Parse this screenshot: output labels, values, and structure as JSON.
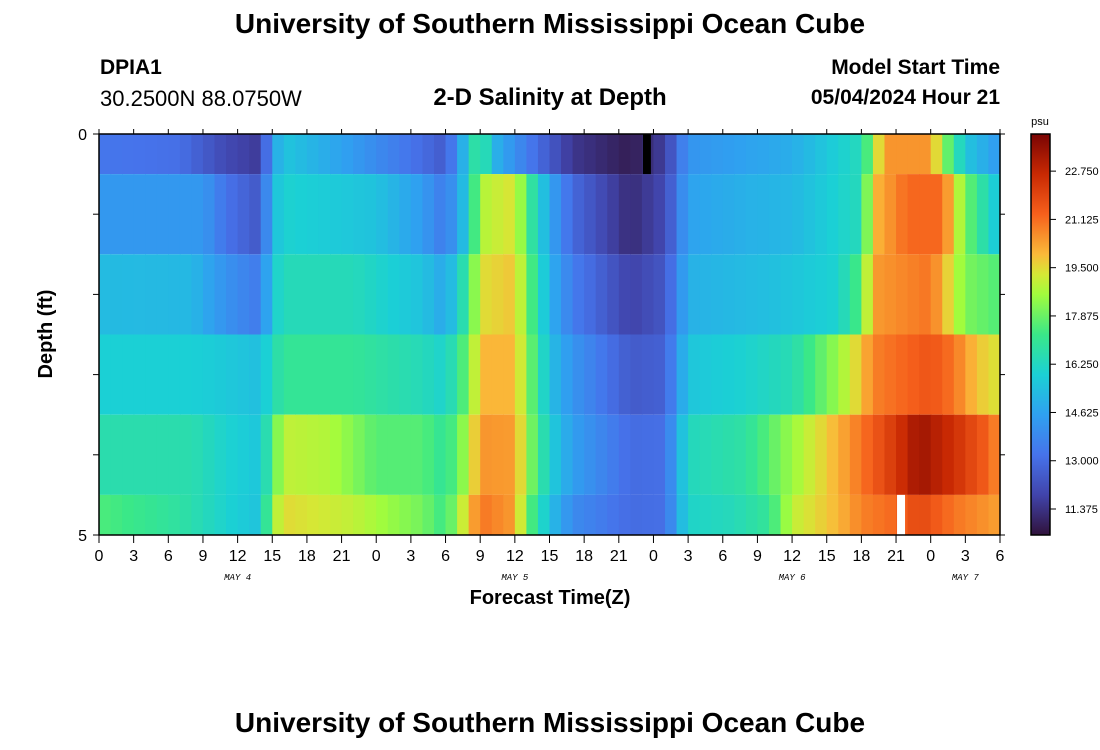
{
  "header": {
    "title": "University of Southern Mississippi Ocean Cube",
    "station_name": "DPIA1",
    "coords": "30.2500N  88.0750W",
    "plot_title": "2-D Salinity at Depth",
    "model_label": "Model Start Time",
    "model_time": "05/04/2024 Hour 21"
  },
  "footer": {
    "title": "University of Southern Mississippi Ocean Cube"
  },
  "chart_data": {
    "type": "heatmap",
    "title": "2-D Salinity at Depth",
    "xlabel": "Forecast Time(Z)",
    "ylabel": "Depth (ft)",
    "y_ticks": [
      "0",
      "5"
    ],
    "ylim": [
      0,
      5
    ],
    "x_tick_labels": [
      "0",
      "3",
      "6",
      "9",
      "12",
      "15",
      "18",
      "21",
      "0",
      "3",
      "6",
      "9",
      "12",
      "15",
      "18",
      "21",
      "0",
      "3",
      "6",
      "9",
      "12",
      "15",
      "18",
      "21",
      "0",
      "3",
      "6"
    ],
    "day_labels": [
      {
        "label": "MAY 4",
        "hour": 12
      },
      {
        "label": "MAY 5",
        "hour": 36
      },
      {
        "label": "MAY 6",
        "hour": 60
      },
      {
        "label": "MAY 7",
        "hour": 75
      }
    ],
    "xlim_hours": [
      0,
      78
    ],
    "colorbar": {
      "unit": "psu",
      "min": 10.5,
      "max": 24.0,
      "tick_labels": [
        "22.750",
        "21.125",
        "19.500",
        "17.875",
        "16.250",
        "14.625",
        "13.000",
        "11.375"
      ],
      "tick_values": [
        22.75,
        21.125,
        19.5,
        17.875,
        16.25,
        14.625,
        13.0,
        11.375
      ]
    },
    "depth_layers": [
      {
        "depth_range": [
          0,
          0.5
        ],
        "keyframes_hour_value": [
          [
            0,
            13.3
          ],
          [
            7,
            13.1
          ],
          [
            11,
            12.0
          ],
          [
            14,
            11.6
          ],
          [
            15,
            14.5
          ],
          [
            16,
            15.6
          ],
          [
            21,
            14.6
          ],
          [
            28,
            13.0
          ],
          [
            30,
            12.5
          ],
          [
            32,
            15.8
          ],
          [
            33,
            17.6
          ],
          [
            34,
            15.2
          ],
          [
            37,
            13.5
          ],
          [
            41,
            11.5
          ],
          [
            46,
            10.8
          ],
          [
            49,
            11.7
          ],
          [
            51,
            14.2
          ],
          [
            60,
            14.9
          ],
          [
            66,
            16.4
          ],
          [
            67,
            18.5
          ],
          [
            68,
            20.5
          ],
          [
            72,
            20.5
          ],
          [
            73,
            18.5
          ],
          [
            75,
            15.6
          ],
          [
            78,
            14.3
          ]
        ]
      },
      {
        "depth_range": [
          0.5,
          1.5
        ],
        "keyframes_hour_value": [
          [
            0,
            14.3
          ],
          [
            9,
            14.3
          ],
          [
            11,
            13.2
          ],
          [
            14,
            12.4
          ],
          [
            15,
            15.3
          ],
          [
            16,
            16.0
          ],
          [
            24,
            15.5
          ],
          [
            28,
            14.4
          ],
          [
            30,
            13.4
          ],
          [
            32,
            15.9
          ],
          [
            33,
            18.8
          ],
          [
            36,
            19.4
          ],
          [
            37,
            17.5
          ],
          [
            39,
            14.7
          ],
          [
            41,
            12.9
          ],
          [
            46,
            11.2
          ],
          [
            49,
            12.0
          ],
          [
            51,
            14.6
          ],
          [
            56,
            15.0
          ],
          [
            60,
            15.2
          ],
          [
            66,
            16.4
          ],
          [
            67,
            19.9
          ],
          [
            70,
            21.2
          ],
          [
            73,
            21.2
          ],
          [
            75,
            18.0
          ],
          [
            78,
            15.4
          ]
        ]
      },
      {
        "depth_range": [
          1.5,
          2.5
        ],
        "keyframes_hour_value": [
          [
            0,
            15.3
          ],
          [
            8,
            15.2
          ],
          [
            11,
            14.1
          ],
          [
            14,
            13.4
          ],
          [
            15,
            15.8
          ],
          [
            16,
            16.4
          ],
          [
            22,
            16.4
          ],
          [
            28,
            15.5
          ],
          [
            30,
            14.7
          ],
          [
            32,
            17.2
          ],
          [
            33,
            19.4
          ],
          [
            36,
            19.8
          ],
          [
            37,
            18.1
          ],
          [
            39,
            15.0
          ],
          [
            41,
            13.5
          ],
          [
            46,
            11.8
          ],
          [
            49,
            12.4
          ],
          [
            51,
            15.0
          ],
          [
            58,
            15.4
          ],
          [
            64,
            16.0
          ],
          [
            66,
            17.6
          ],
          [
            67,
            20.4
          ],
          [
            72,
            21.0
          ],
          [
            73,
            20.1
          ],
          [
            75,
            18.1
          ],
          [
            78,
            17.5
          ]
        ]
      },
      {
        "depth_range": [
          2.5,
          3.5
        ],
        "keyframes_hour_value": [
          [
            0,
            15.9
          ],
          [
            8,
            15.9
          ],
          [
            11,
            15.7
          ],
          [
            14,
            15.4
          ],
          [
            15,
            16.4
          ],
          [
            16,
            17.0
          ],
          [
            22,
            17.0
          ],
          [
            28,
            16.4
          ],
          [
            30,
            16.0
          ],
          [
            32,
            18.0
          ],
          [
            33,
            20.0
          ],
          [
            36,
            20.0
          ],
          [
            37,
            18.4
          ],
          [
            39,
            15.4
          ],
          [
            41,
            14.2
          ],
          [
            46,
            12.5
          ],
          [
            49,
            12.7
          ],
          [
            51,
            15.6
          ],
          [
            56,
            16.0
          ],
          [
            60,
            16.5
          ],
          [
            64,
            18.5
          ],
          [
            66,
            19.8
          ],
          [
            67,
            20.8
          ],
          [
            72,
            21.6
          ],
          [
            74,
            21.0
          ],
          [
            76,
            19.8
          ],
          [
            78,
            19.3
          ]
        ]
      },
      {
        "depth_range": [
          3.5,
          4.5
        ],
        "keyframes_hour_value": [
          [
            0,
            16.6
          ],
          [
            8,
            16.6
          ],
          [
            11,
            16.0
          ],
          [
            14,
            15.6
          ],
          [
            15,
            17.5
          ],
          [
            16,
            19.0
          ],
          [
            20,
            18.8
          ],
          [
            24,
            17.6
          ],
          [
            28,
            17.6
          ],
          [
            30,
            16.9
          ],
          [
            32,
            18.8
          ],
          [
            33,
            20.5
          ],
          [
            36,
            20.4
          ],
          [
            37,
            18.6
          ],
          [
            39,
            15.9
          ],
          [
            41,
            14.5
          ],
          [
            46,
            13.0
          ],
          [
            49,
            13.1
          ],
          [
            51,
            16.3
          ],
          [
            56,
            16.8
          ],
          [
            60,
            18.5
          ],
          [
            64,
            20.1
          ],
          [
            66,
            21.0
          ],
          [
            69,
            22.3
          ],
          [
            71,
            23.4
          ],
          [
            74,
            22.5
          ],
          [
            77,
            21.3
          ],
          [
            78,
            20.5
          ]
        ]
      },
      {
        "depth_range": [
          4.5,
          5
        ],
        "keyframes_hour_value": [
          [
            0,
            17.5
          ],
          [
            7,
            16.8
          ],
          [
            11,
            16.0
          ],
          [
            14,
            15.5
          ],
          [
            15,
            18.5
          ],
          [
            16,
            19.5
          ],
          [
            22,
            19.0
          ],
          [
            28,
            18.0
          ],
          [
            30,
            17.2
          ],
          [
            32,
            19.8
          ],
          [
            33,
            21.0
          ],
          [
            36,
            20.4
          ],
          [
            37,
            18.0
          ],
          [
            39,
            15.4
          ],
          [
            41,
            13.9
          ],
          [
            46,
            13.0
          ],
          [
            49,
            13.1
          ],
          [
            51,
            16.1
          ],
          [
            55,
            16.4
          ],
          [
            58,
            17.0
          ],
          [
            60,
            19.0
          ],
          [
            64,
            20.0
          ],
          [
            66,
            20.8
          ],
          [
            69,
            21.2
          ],
          [
            71,
            21.9
          ],
          [
            74,
            21.0
          ],
          [
            77,
            20.5
          ],
          [
            78,
            20.3
          ]
        ]
      }
    ],
    "annotations": [
      {
        "kind": "black-bar",
        "hour": 47,
        "depth_range": [
          0,
          0.5
        ]
      },
      {
        "kind": "white-bar",
        "hour": 69,
        "depth_range": [
          4.5,
          5
        ]
      }
    ]
  }
}
